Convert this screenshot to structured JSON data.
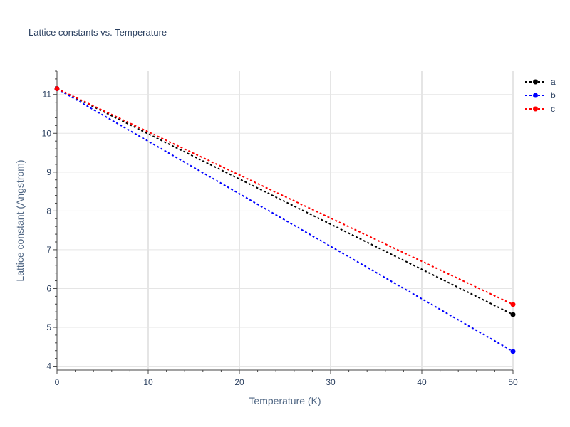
{
  "chart_data": {
    "type": "line",
    "title": "Lattice constants vs. Temperature",
    "xlabel": "Temperature (K)",
    "ylabel": "Lattice constant (Angstrom)",
    "xlim": [
      0,
      50
    ],
    "ylim": [
      3.9,
      11.6
    ],
    "xticks": [
      0,
      10,
      20,
      30,
      40,
      50
    ],
    "yticks": [
      4,
      5,
      6,
      7,
      8,
      9,
      10,
      11
    ],
    "grid": true,
    "legend_position": "top-right",
    "series": [
      {
        "name": "a",
        "color": "#000000",
        "line_style": "dotted",
        "marker": "circle",
        "x": [
          0,
          50
        ],
        "y": [
          11.15,
          5.33
        ]
      },
      {
        "name": "b",
        "color": "#0000ff",
        "line_style": "dotted",
        "marker": "circle",
        "x": [
          0,
          50
        ],
        "y": [
          11.15,
          4.38
        ]
      },
      {
        "name": "c",
        "color": "#ff0000",
        "line_style": "dotted",
        "marker": "circle",
        "x": [
          0,
          50
        ],
        "y": [
          11.15,
          5.59
        ]
      }
    ]
  }
}
